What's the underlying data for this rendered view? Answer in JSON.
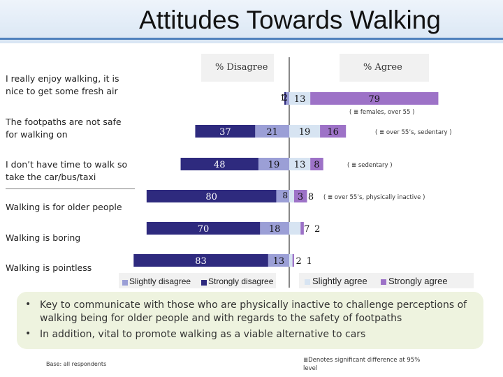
{
  "title": "Attitudes Towards Walking",
  "headers": {
    "disagree": "% Disagree",
    "agree": "% Agree"
  },
  "legend": {
    "slightly_disagree": "Slightly disagree",
    "strongly_disagree": "Strongly disagree",
    "slightly_agree": "Slightly agree",
    "strongly_agree": "Strongly agree"
  },
  "colors": {
    "strongly_disagree": "#2e2a7e",
    "slightly_disagree": "#9b9fd6",
    "slightly_agree": "#d7e4f2",
    "strongly_agree": "#9d72c7"
  },
  "chart_data": {
    "type": "bar",
    "orientation": "horizontal-diverging",
    "categories": [
      "I really enjoy walking, it is nice to get some fresh air",
      "The footpaths are not safe for walking on",
      "I don’t have time to walk so take the car/bus/taxi",
      "Walking is for older people",
      "Walking is boring",
      "Walking is pointless"
    ],
    "series": [
      {
        "name": "Strongly disagree",
        "values": [
          1,
          37,
          48,
          80,
          70,
          83
        ]
      },
      {
        "name": "Slightly disagree",
        "values": [
          2,
          21,
          19,
          8,
          18,
          13
        ]
      },
      {
        "name": "Slightly agree",
        "values": [
          13,
          19,
          13,
          3,
          7,
          2
        ]
      },
      {
        "name": "Strongly agree",
        "values": [
          79,
          16,
          8,
          8,
          2,
          1
        ]
      }
    ],
    "value_labels": [
      [
        "1",
        "2",
        "13",
        "79"
      ],
      [
        "37",
        "21",
        "19",
        "16"
      ],
      [
        "48",
        "19",
        "13",
        "8"
      ],
      [
        "80",
        "8",
        "3",
        "8"
      ],
      [
        "70",
        "18",
        "7",
        "2"
      ],
      [
        "83",
        "13",
        "2",
        "1"
      ]
    ],
    "annotations": [
      "( ≣ females, over 55 )",
      "( ≣ over 55’s, sedentary )",
      "( ≣ sedentary )",
      "( ≣ over 55’s, physically inactive )",
      "",
      ""
    ],
    "legend_position": "bottom"
  },
  "statements": [
    "I really enjoy walking, it is\nnice to get some fresh air",
    "The footpaths are not safe\nfor walking on",
    "I don’t have time to walk so\ntake the car/bus/taxi",
    "Walking is for older people",
    "Walking is boring",
    "Walking is pointless"
  ],
  "bullets": [
    "Key to communicate with those who are physically inactive to challenge perceptions of walking being for older people and with regards to the safety of footpaths",
    "In addition, vital to promote walking as a viable alternative to cars"
  ],
  "base_note": "Base: all respondents",
  "sig_note": "≣Denotes significant difference at 95% level"
}
